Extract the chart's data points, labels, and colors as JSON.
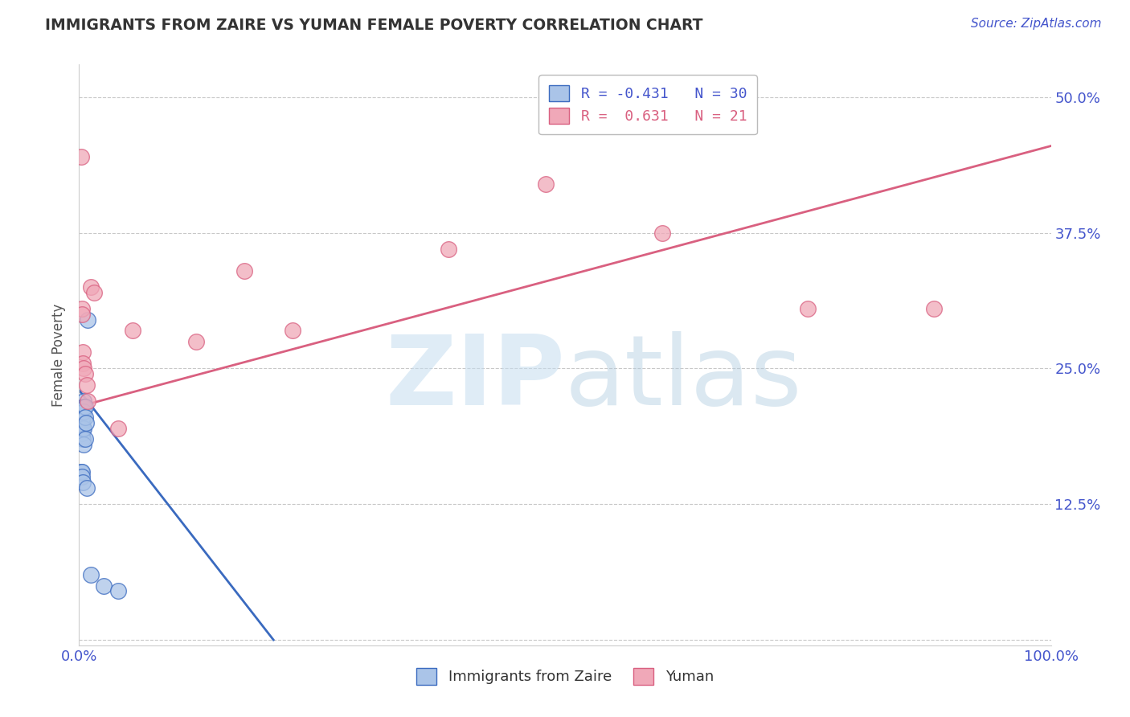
{
  "title": "IMMIGRANTS FROM ZAIRE VS YUMAN FEMALE POVERTY CORRELATION CHART",
  "source_text": "Source: ZipAtlas.com",
  "ylabel": "Female Poverty",
  "y_ticks": [
    0.0,
    0.125,
    0.25,
    0.375,
    0.5
  ],
  "y_tick_labels": [
    "",
    "12.5%",
    "25.0%",
    "37.5%",
    "50.0%"
  ],
  "x_ticks": [
    0.0,
    0.25,
    0.5,
    0.75,
    1.0
  ],
  "x_tick_labels": [
    "0.0%",
    "",
    "",
    "",
    "100.0%"
  ],
  "xlim": [
    0.0,
    1.0
  ],
  "ylim": [
    -0.005,
    0.53
  ],
  "watermark": "ZIPatlas",
  "blue_scatter_x": [
    0.002,
    0.002,
    0.003,
    0.003,
    0.003,
    0.003,
    0.003,
    0.004,
    0.004,
    0.004,
    0.004,
    0.004,
    0.005,
    0.005,
    0.005,
    0.005,
    0.005,
    0.006,
    0.006,
    0.006,
    0.007,
    0.002,
    0.003,
    0.003,
    0.004,
    0.008,
    0.009,
    0.012,
    0.025,
    0.04
  ],
  "blue_scatter_y": [
    0.205,
    0.195,
    0.215,
    0.21,
    0.205,
    0.2,
    0.19,
    0.215,
    0.21,
    0.205,
    0.195,
    0.185,
    0.22,
    0.215,
    0.21,
    0.195,
    0.18,
    0.215,
    0.205,
    0.185,
    0.2,
    0.155,
    0.155,
    0.15,
    0.145,
    0.14,
    0.295,
    0.06,
    0.05,
    0.045
  ],
  "pink_scatter_x": [
    0.002,
    0.003,
    0.003,
    0.004,
    0.004,
    0.005,
    0.006,
    0.008,
    0.009,
    0.012,
    0.015,
    0.04,
    0.055,
    0.12,
    0.17,
    0.22,
    0.38,
    0.48,
    0.6,
    0.75,
    0.88
  ],
  "pink_scatter_y": [
    0.445,
    0.305,
    0.3,
    0.265,
    0.255,
    0.25,
    0.245,
    0.235,
    0.22,
    0.325,
    0.32,
    0.195,
    0.285,
    0.275,
    0.34,
    0.285,
    0.36,
    0.42,
    0.375,
    0.305,
    0.305
  ],
  "blue_line_x": [
    0.0,
    0.2
  ],
  "blue_line_y": [
    0.23,
    0.0
  ],
  "pink_line_x": [
    0.0,
    1.0
  ],
  "pink_line_y": [
    0.215,
    0.455
  ],
  "blue_color": "#3a6abf",
  "blue_fill": "#aac4e8",
  "pink_color": "#d96080",
  "pink_fill": "#f0a8b8",
  "grid_color": "#c8c8c8",
  "background_color": "#ffffff",
  "title_color": "#333333",
  "source_color": "#4455cc",
  "axis_label_color": "#555555",
  "tick_color": "#4455cc",
  "legend1_labels": [
    "R = -0.431   N = 30",
    "R =  0.631   N = 21"
  ],
  "legend2_labels": [
    "Immigrants from Zaire",
    "Yuman"
  ]
}
